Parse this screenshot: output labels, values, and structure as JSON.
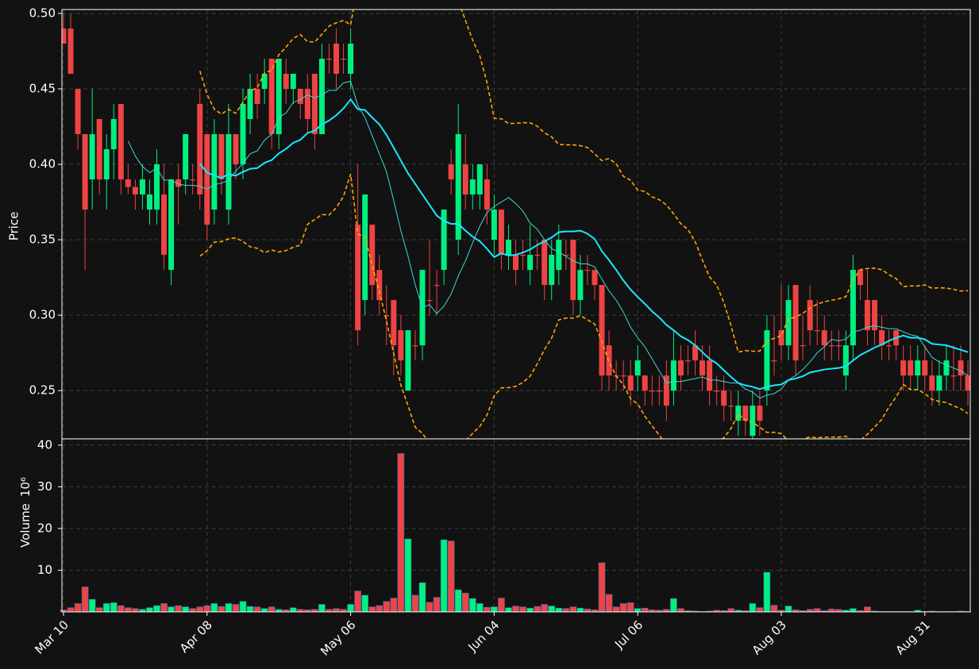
{
  "chart_data": {
    "type": "candlestick",
    "categories": [
      "Mar 10",
      null,
      null,
      null,
      null,
      null,
      null,
      null,
      null,
      null,
      null,
      null,
      null,
      null,
      null,
      null,
      null,
      null,
      null,
      null,
      "Apr 08",
      null,
      null,
      null,
      null,
      null,
      null,
      null,
      null,
      null,
      null,
      null,
      null,
      null,
      null,
      null,
      null,
      null,
      null,
      null,
      "May 06",
      null,
      null,
      null,
      null,
      null,
      null,
      null,
      null,
      null,
      null,
      null,
      null,
      null,
      null,
      null,
      null,
      null,
      null,
      null,
      "Jun 04",
      null,
      null,
      null,
      null,
      null,
      null,
      null,
      null,
      null,
      null,
      null,
      null,
      null,
      null,
      null,
      null,
      null,
      null,
      null,
      "Jul 06",
      null,
      null,
      null,
      null,
      null,
      null,
      null,
      null,
      null,
      null,
      null,
      null,
      null,
      null,
      null,
      null,
      null,
      null,
      null,
      "Aug 03",
      null,
      null,
      null,
      null,
      null,
      null,
      null,
      null,
      null,
      null,
      null,
      null,
      null,
      null,
      null,
      null,
      null,
      null,
      null,
      "Aug 31",
      null,
      null,
      null,
      null,
      null,
      null
    ],
    "open": [
      0.49,
      0.49,
      0.45,
      0.42,
      0.39,
      0.43,
      0.39,
      0.41,
      0.44,
      0.39,
      0.385,
      0.38,
      0.37,
      0.37,
      0.38,
      0.33,
      0.39,
      0.39,
      0.39,
      0.44,
      0.42,
      0.37,
      0.42,
      0.37,
      0.42,
      0.4,
      0.43,
      0.45,
      0.45,
      0.47,
      0.42,
      0.46,
      0.45,
      0.45,
      0.45,
      0.46,
      0.42,
      0.47,
      0.48,
      0.47,
      0.46,
      0.36,
      0.31,
      0.36,
      0.33,
      0.3,
      0.31,
      0.29,
      0.25,
      0.28,
      0.28,
      0.31,
      0.32,
      0.33,
      0.4,
      0.35,
      0.4,
      0.38,
      0.38,
      0.39,
      0.35,
      0.37,
      0.34,
      0.34,
      0.34,
      0.33,
      0.34,
      0.35,
      0.32,
      0.33,
      0.34,
      0.35,
      0.31,
      0.33,
      0.33,
      0.32,
      0.28,
      0.26,
      0.26,
      0.26,
      0.26,
      0.26,
      0.25,
      0.25,
      0.26,
      0.25,
      0.27,
      0.27,
      0.28,
      0.27,
      0.27,
      0.25,
      0.25,
      0.24,
      0.23,
      0.24,
      0.22,
      0.24,
      0.25,
      0.27,
      0.29,
      0.28,
      0.32,
      0.28,
      0.31,
      0.29,
      0.29,
      0.28,
      0.28,
      0.26,
      0.28,
      0.33,
      0.31,
      0.31,
      0.29,
      0.28,
      0.29,
      0.27,
      0.27,
      0.26,
      0.27,
      0.26,
      0.25,
      0.26,
      0.26,
      0.27,
      0.26
    ],
    "high": [
      0.5,
      0.5,
      0.45,
      0.42,
      0.45,
      0.43,
      0.42,
      0.44,
      0.44,
      0.4,
      0.39,
      0.4,
      0.39,
      0.41,
      0.4,
      0.39,
      0.4,
      0.42,
      0.4,
      0.45,
      0.42,
      0.43,
      0.42,
      0.44,
      0.42,
      0.45,
      0.46,
      0.46,
      0.47,
      0.47,
      0.47,
      0.47,
      0.46,
      0.45,
      0.46,
      0.46,
      0.48,
      0.48,
      0.49,
      0.48,
      0.49,
      0.4,
      0.38,
      0.36,
      0.34,
      0.32,
      0.31,
      0.3,
      0.29,
      0.29,
      0.33,
      0.35,
      0.33,
      0.37,
      0.41,
      0.44,
      0.42,
      0.4,
      0.4,
      0.4,
      0.38,
      0.37,
      0.36,
      0.35,
      0.35,
      0.36,
      0.35,
      0.35,
      0.35,
      0.36,
      0.35,
      0.35,
      0.34,
      0.34,
      0.33,
      0.32,
      0.29,
      0.27,
      0.27,
      0.27,
      0.28,
      0.26,
      0.26,
      0.26,
      0.27,
      0.29,
      0.28,
      0.28,
      0.29,
      0.28,
      0.28,
      0.26,
      0.26,
      0.25,
      0.25,
      0.24,
      0.25,
      0.25,
      0.3,
      0.3,
      0.32,
      0.32,
      0.32,
      0.3,
      0.32,
      0.31,
      0.3,
      0.29,
      0.29,
      0.29,
      0.34,
      0.33,
      0.33,
      0.31,
      0.3,
      0.29,
      0.29,
      0.28,
      0.28,
      0.28,
      0.28,
      0.27,
      0.27,
      0.28,
      0.28,
      0.28,
      0.27
    ],
    "low": [
      0.48,
      0.46,
      0.41,
      0.33,
      0.37,
      0.38,
      0.37,
      0.39,
      0.38,
      0.38,
      0.37,
      0.37,
      0.36,
      0.36,
      0.33,
      0.32,
      0.36,
      0.38,
      0.38,
      0.37,
      0.35,
      0.36,
      0.38,
      0.36,
      0.39,
      0.39,
      0.42,
      0.43,
      0.44,
      0.41,
      0.41,
      0.44,
      0.44,
      0.43,
      0.42,
      0.41,
      0.42,
      0.46,
      0.45,
      0.46,
      0.45,
      0.28,
      0.3,
      0.31,
      0.3,
      0.28,
      0.26,
      0.26,
      0.25,
      0.27,
      0.27,
      0.3,
      0.3,
      0.32,
      0.38,
      0.34,
      0.37,
      0.37,
      0.37,
      0.36,
      0.34,
      0.33,
      0.33,
      0.32,
      0.33,
      0.32,
      0.33,
      0.31,
      0.31,
      0.32,
      0.33,
      0.3,
      0.3,
      0.32,
      0.31,
      0.25,
      0.25,
      0.25,
      0.25,
      0.24,
      0.25,
      0.24,
      0.24,
      0.24,
      0.23,
      0.24,
      0.25,
      0.26,
      0.26,
      0.25,
      0.24,
      0.24,
      0.23,
      0.23,
      0.22,
      0.22,
      0.21,
      0.22,
      0.24,
      0.26,
      0.27,
      0.27,
      0.26,
      0.27,
      0.28,
      0.28,
      0.27,
      0.27,
      0.27,
      0.25,
      0.27,
      0.31,
      0.28,
      0.28,
      0.27,
      0.27,
      0.27,
      0.25,
      0.25,
      0.25,
      0.25,
      0.24,
      0.24,
      0.25,
      0.25,
      0.25,
      0.24
    ],
    "close": [
      0.48,
      0.46,
      0.42,
      0.37,
      0.42,
      0.39,
      0.41,
      0.43,
      0.39,
      0.385,
      0.38,
      0.39,
      0.38,
      0.4,
      0.34,
      0.39,
      0.385,
      0.42,
      0.39,
      0.38,
      0.36,
      0.42,
      0.39,
      0.42,
      0.4,
      0.44,
      0.45,
      0.44,
      0.46,
      0.42,
      0.47,
      0.45,
      0.46,
      0.44,
      0.43,
      0.42,
      0.47,
      0.47,
      0.46,
      0.47,
      0.48,
      0.29,
      0.38,
      0.32,
      0.31,
      0.3,
      0.28,
      0.27,
      0.29,
      0.28,
      0.33,
      0.31,
      0.32,
      0.37,
      0.39,
      0.42,
      0.38,
      0.39,
      0.4,
      0.37,
      0.37,
      0.34,
      0.35,
      0.33,
      0.34,
      0.34,
      0.34,
      0.32,
      0.34,
      0.35,
      0.34,
      0.31,
      0.33,
      0.33,
      0.32,
      0.26,
      0.26,
      0.26,
      0.26,
      0.25,
      0.27,
      0.25,
      0.25,
      0.25,
      0.24,
      0.27,
      0.26,
      0.27,
      0.27,
      0.26,
      0.25,
      0.25,
      0.24,
      0.24,
      0.24,
      0.23,
      0.24,
      0.23,
      0.29,
      0.27,
      0.28,
      0.31,
      0.27,
      0.28,
      0.29,
      0.29,
      0.28,
      0.28,
      0.28,
      0.28,
      0.33,
      0.32,
      0.29,
      0.29,
      0.28,
      0.28,
      0.28,
      0.26,
      0.26,
      0.27,
      0.26,
      0.25,
      0.26,
      0.27,
      0.26,
      0.26,
      0.25
    ],
    "volume": [
      0.5,
      1,
      2,
      6,
      3,
      1,
      2,
      2.2,
      1.5,
      1,
      0.8,
      0.6,
      1,
      1.5,
      2,
      1.2,
      1.5,
      1.2,
      0.8,
      1.2,
      1.5,
      2,
      1.3,
      2,
      1.8,
      2.5,
      1.3,
      1.2,
      0.8,
      1.2,
      0.6,
      0.5,
      1,
      0.6,
      0.5,
      0.6,
      1.8,
      0.6,
      0.8,
      0.6,
      1.8,
      5,
      4,
      1.2,
      1.5,
      2.5,
      3.3,
      38,
      17.5,
      4,
      7,
      2.3,
      3.5,
      17.3,
      17,
      5.3,
      4.5,
      3.2,
      2,
      1.1,
      1.2,
      3.3,
      1,
      1.4,
      1.2,
      0.9,
      1.3,
      1.8,
      1.4,
      0.9,
      0.8,
      1.2,
      0.9,
      0.7,
      0.5,
      11.8,
      4.2,
      1.2,
      2,
      2.2,
      0.8,
      0.9,
      0.5,
      0.4,
      0.6,
      3.2,
      0.8,
      0.3,
      0.2,
      0.1,
      0.2,
      0.4,
      0.3,
      0.8,
      0.4,
      0.3,
      2,
      1,
      9.5,
      1.6,
      0.4,
      1.4,
      0.5,
      0.3,
      0.6,
      0.8,
      0.3,
      0.7,
      0.6,
      0.4,
      0.8,
      0.3,
      1.2,
      0.2,
      0.1,
      0.1,
      0.1,
      0.1,
      0.1,
      0.4,
      0.1,
      0.2,
      0.1,
      0.1,
      0.1,
      0.2,
      0.1
    ],
    "up_color": "#00f080",
    "down_color": "#ee4444",
    "ylabel": "Price",
    "ylim": [
      0.218,
      0.5026
    ],
    "yticks": [
      0.25,
      {
        "value": 0.3,
        "label": "0.30"
      },
      0.35,
      {
        "value": 0.4,
        "label": "0.40"
      },
      0.45,
      {
        "value": 0.5,
        "label": "0.50"
      }
    ],
    "volume_label": "Volume",
    "volume_unit": "10⁶",
    "volume_ylim": [
      0,
      41.5
    ],
    "volume_yticks": [
      10,
      20,
      30,
      40
    ],
    "grid": true,
    "overlay_colors": {
      "short_ma": "#40d8d8",
      "long_ma": "#18e8ff",
      "bands": "#ffa500"
    }
  }
}
